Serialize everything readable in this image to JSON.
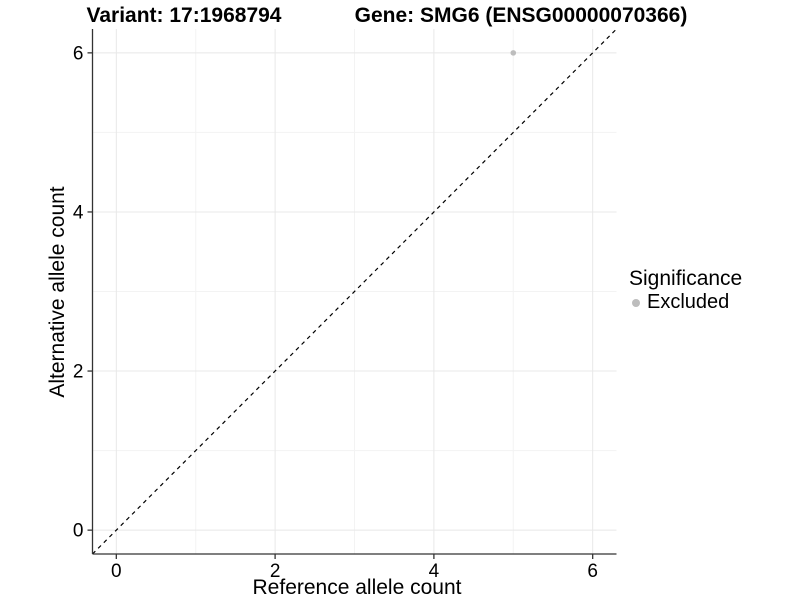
{
  "chart_data": {
    "type": "scatter",
    "title_variant": "Variant: 17:1968794",
    "title_gene": "Gene: SMG6 (ENSG00000070366)",
    "xlabel": "Reference allele count",
    "ylabel": "Alternative allele count",
    "xlim": [
      -0.3,
      6.3
    ],
    "ylim": [
      -0.3,
      6.3
    ],
    "xticks": [
      0,
      2,
      4,
      6
    ],
    "yticks": [
      0,
      2,
      4,
      6
    ],
    "minor_xticks": [
      1,
      3,
      5
    ],
    "minor_yticks": [
      1,
      3,
      5
    ],
    "grid": true,
    "series": [
      {
        "name": "Excluded",
        "color": "#bdbdbd",
        "points": [
          {
            "x": 5,
            "y": 6
          }
        ]
      }
    ],
    "abline": {
      "slope": 1,
      "intercept": 0,
      "style": "dashed",
      "color": "#000000"
    },
    "legend": {
      "title": "Significance",
      "position": "right",
      "items": [
        {
          "label": "Excluded",
          "color": "#bdbdbd"
        }
      ]
    },
    "colors": {
      "grid_major": "#e8e8e8",
      "grid_minor": "#f3f3f3",
      "axis_line": "#333333",
      "tick_text": "#000000",
      "background": "#ffffff"
    },
    "tick_font_px": 19
  }
}
